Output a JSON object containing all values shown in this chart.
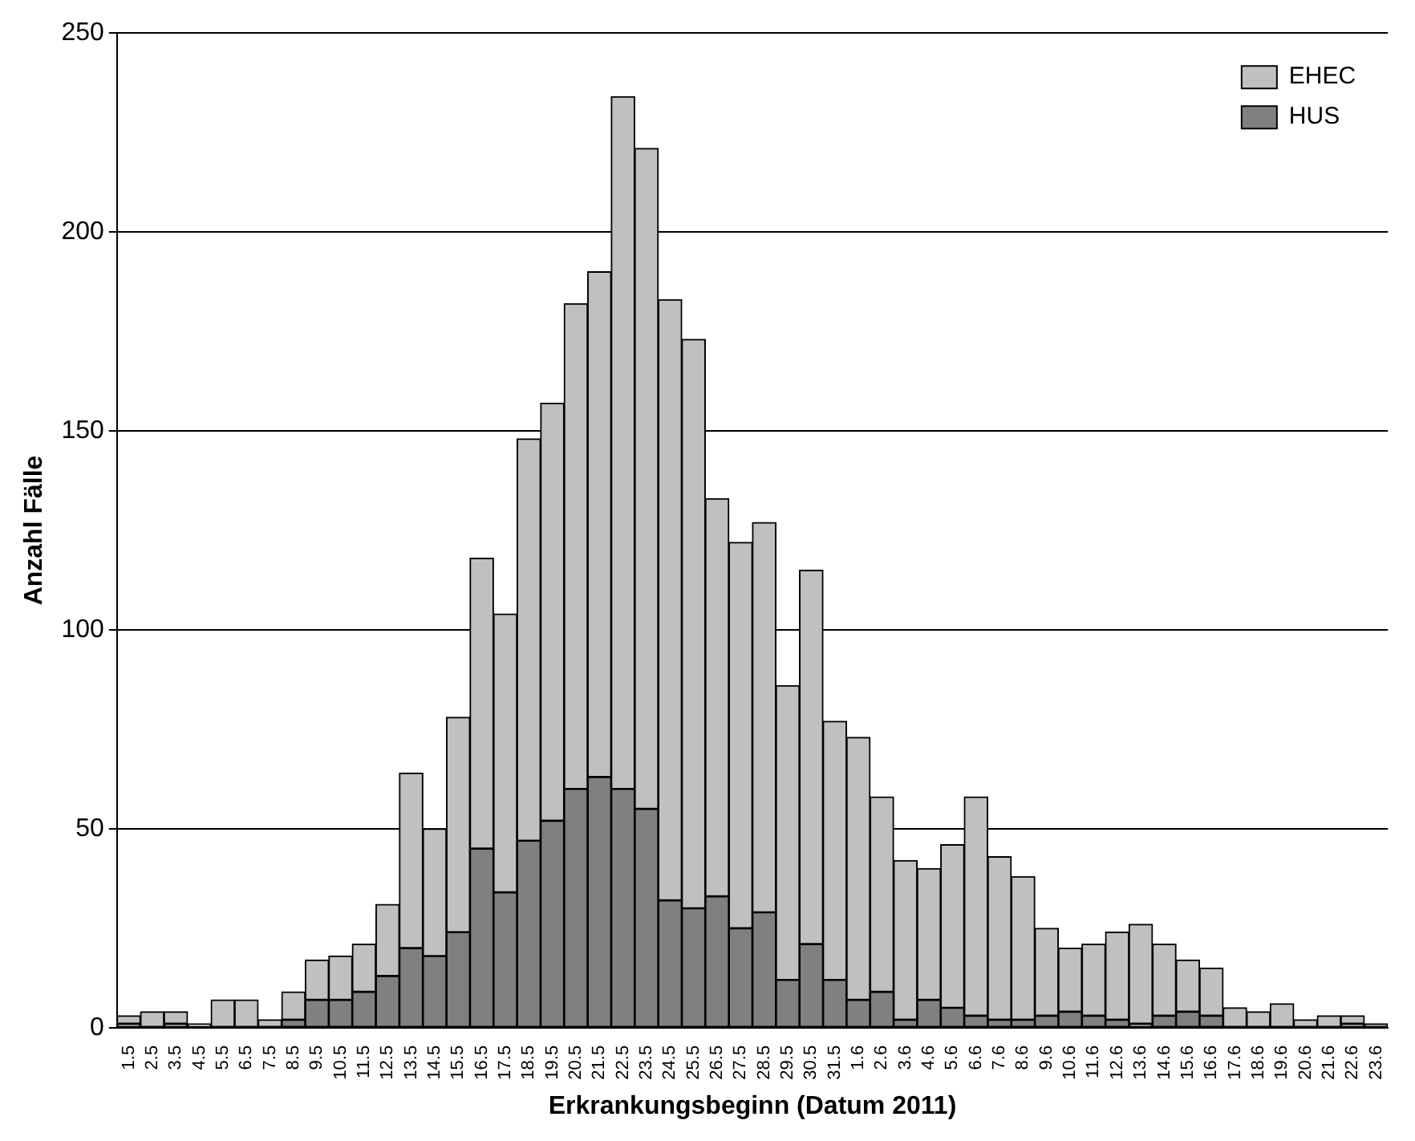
{
  "chart_data": {
    "type": "bar",
    "stacked": true,
    "xlabel": "Erkrankungsbeginn (Datum 2011)",
    "ylabel": "Anzahl Fälle",
    "categories": [
      "1.5",
      "2.5",
      "3.5",
      "4.5",
      "5.5",
      "6.5",
      "7.5",
      "8.5",
      "9.5",
      "10.5",
      "11.5",
      "12.5",
      "13.5",
      "14.5",
      "15.5",
      "16.5",
      "17.5",
      "18.5",
      "19.5",
      "20.5",
      "21.5",
      "22.5",
      "23.5",
      "24.5",
      "25.5",
      "26.5",
      "27.5",
      "28.5",
      "29.5",
      "30.5",
      "31.5",
      "1.6",
      "2.6",
      "3.6",
      "4.6",
      "5.6",
      "6.6",
      "7.6",
      "8.6",
      "9.6",
      "10.6",
      "11.6",
      "12.6",
      "13.6",
      "14.6",
      "15.6",
      "16.6",
      "17.6",
      "18.6",
      "19.6",
      "20.6",
      "21.6",
      "22.6",
      "23.6"
    ],
    "series": [
      {
        "name": "HUS",
        "color": "#808080",
        "values": [
          1,
          0,
          1,
          0,
          0,
          0,
          0,
          2,
          7,
          7,
          9,
          13,
          20,
          18,
          24,
          45,
          34,
          47,
          52,
          60,
          63,
          60,
          55,
          32,
          30,
          33,
          25,
          29,
          12,
          21,
          12,
          7,
          9,
          2,
          7,
          5,
          3,
          2,
          2,
          3,
          4,
          3,
          2,
          1,
          3,
          4,
          3,
          0,
          0,
          0,
          0,
          0,
          1,
          1
        ]
      },
      {
        "name": "EHEC",
        "color": "#c0c0c0",
        "values": [
          2,
          4,
          3,
          1,
          7,
          7,
          2,
          7,
          10,
          11,
          12,
          18,
          44,
          32,
          54,
          73,
          70,
          101,
          105,
          122,
          127,
          174,
          166,
          151,
          143,
          100,
          97,
          98,
          74,
          94,
          65,
          66,
          49,
          40,
          33,
          41,
          55,
          41,
          36,
          22,
          16,
          18,
          22,
          25,
          18,
          13,
          12,
          5,
          4,
          6,
          2,
          3,
          2,
          0
        ]
      }
    ],
    "ylim": [
      0,
      250
    ],
    "yticks": [
      0,
      50,
      100,
      150,
      200,
      250
    ],
    "grid": "y",
    "legend": "top right"
  }
}
